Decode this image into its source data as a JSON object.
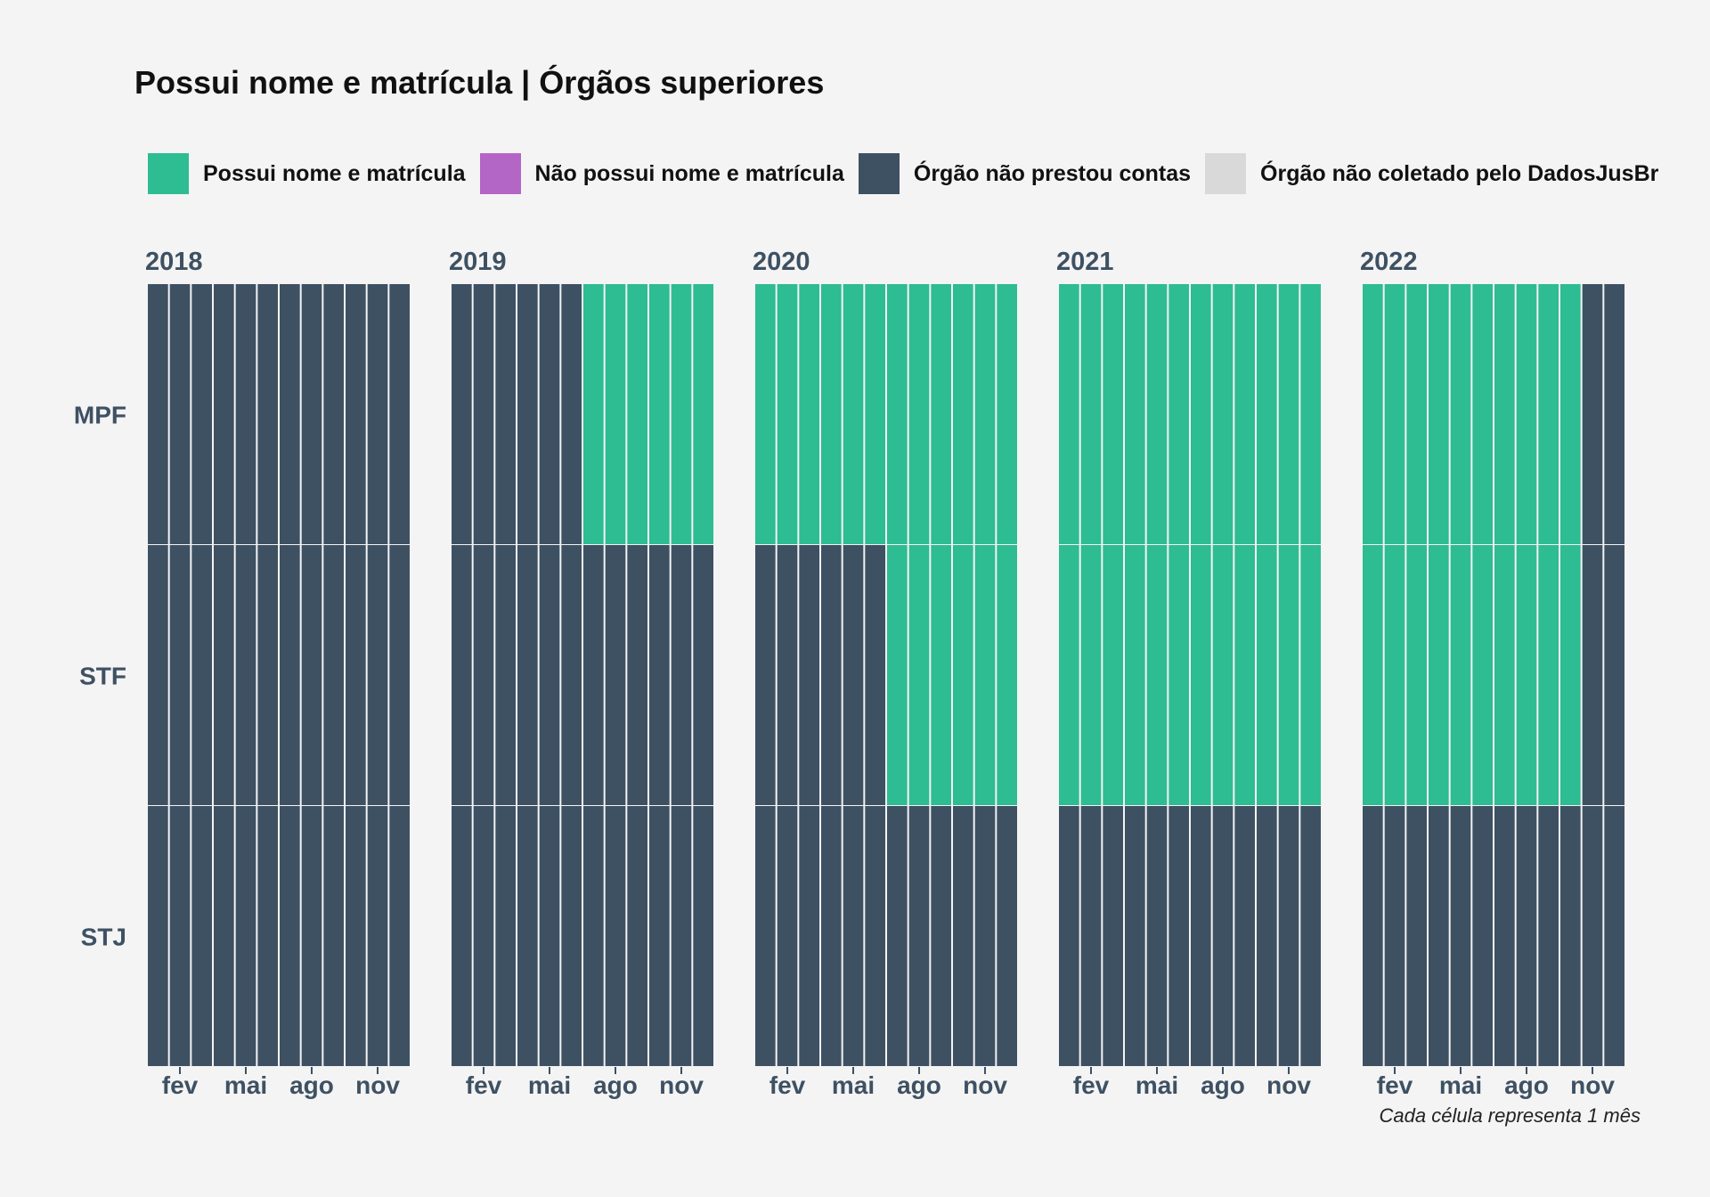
{
  "title": "Possui nome e matrícula | Órgãos superiores",
  "caption": "Cada célula representa 1 mês",
  "legend": [
    {
      "label": "Possui nome e matrícula",
      "color": "#2ebc92"
    },
    {
      "label": "Não possui nome e matrícula",
      "color": "#b366c6"
    },
    {
      "label": "Órgão não prestou contas",
      "color": "#3e5163"
    },
    {
      "label": "Órgão não coletado pelo DadosJusBr",
      "color": "#d9d9d9"
    }
  ],
  "chart_data": {
    "type": "heatmap",
    "title": "Possui nome e matrícula | Órgãos superiores",
    "facets": [
      "2018",
      "2019",
      "2020",
      "2021",
      "2022"
    ],
    "rows": [
      "MPF",
      "STF",
      "STJ"
    ],
    "month_ticks": [
      {
        "label": "fev",
        "month": 2
      },
      {
        "label": "mai",
        "month": 5
      },
      {
        "label": "ago",
        "month": 8
      },
      {
        "label": "nov",
        "month": 11
      }
    ],
    "months_per_year": 12,
    "status_codes": {
      "P": "Possui nome e matrícula",
      "N": "Não possui nome e matrícula",
      "X": "Órgão não prestou contas",
      "C": "Órgão não coletado pelo DadosJusBr"
    },
    "colors": {
      "P": "#2ebc92",
      "N": "#b366c6",
      "X": "#3e5163",
      "C": "#d9d9d9"
    },
    "values": {
      "2018": {
        "MPF": [
          "X",
          "X",
          "X",
          "X",
          "X",
          "X",
          "X",
          "X",
          "X",
          "X",
          "X",
          "X"
        ],
        "STF": [
          "X",
          "X",
          "X",
          "X",
          "X",
          "X",
          "X",
          "X",
          "X",
          "X",
          "X",
          "X"
        ],
        "STJ": [
          "X",
          "X",
          "X",
          "X",
          "X",
          "X",
          "X",
          "X",
          "X",
          "X",
          "X",
          "X"
        ]
      },
      "2019": {
        "MPF": [
          "X",
          "X",
          "X",
          "X",
          "X",
          "X",
          "P",
          "P",
          "P",
          "P",
          "P",
          "P"
        ],
        "STF": [
          "X",
          "X",
          "X",
          "X",
          "X",
          "X",
          "X",
          "X",
          "X",
          "X",
          "X",
          "X"
        ],
        "STJ": [
          "X",
          "X",
          "X",
          "X",
          "X",
          "X",
          "X",
          "X",
          "X",
          "X",
          "X",
          "X"
        ]
      },
      "2020": {
        "MPF": [
          "P",
          "P",
          "P",
          "P",
          "P",
          "P",
          "P",
          "P",
          "P",
          "P",
          "P",
          "P"
        ],
        "STF": [
          "X",
          "X",
          "X",
          "X",
          "X",
          "X",
          "P",
          "P",
          "P",
          "P",
          "P",
          "P"
        ],
        "STJ": [
          "X",
          "X",
          "X",
          "X",
          "X",
          "X",
          "X",
          "X",
          "X",
          "X",
          "X",
          "X"
        ]
      },
      "2021": {
        "MPF": [
          "P",
          "P",
          "P",
          "P",
          "P",
          "P",
          "P",
          "P",
          "P",
          "P",
          "P",
          "P"
        ],
        "STF": [
          "P",
          "P",
          "P",
          "P",
          "P",
          "P",
          "P",
          "P",
          "P",
          "P",
          "P",
          "P"
        ],
        "STJ": [
          "X",
          "X",
          "X",
          "X",
          "X",
          "X",
          "X",
          "X",
          "X",
          "X",
          "X",
          "X"
        ]
      },
      "2022": {
        "MPF": [
          "P",
          "P",
          "P",
          "P",
          "P",
          "P",
          "P",
          "P",
          "P",
          "P",
          "X",
          "X"
        ],
        "STF": [
          "P",
          "P",
          "P",
          "P",
          "P",
          "P",
          "P",
          "P",
          "P",
          "P",
          "X",
          "X"
        ],
        "STJ": [
          "X",
          "X",
          "X",
          "X",
          "X",
          "X",
          "X",
          "X",
          "X",
          "X",
          "X",
          "X"
        ]
      }
    },
    "grid": false,
    "legend_position": "top"
  }
}
